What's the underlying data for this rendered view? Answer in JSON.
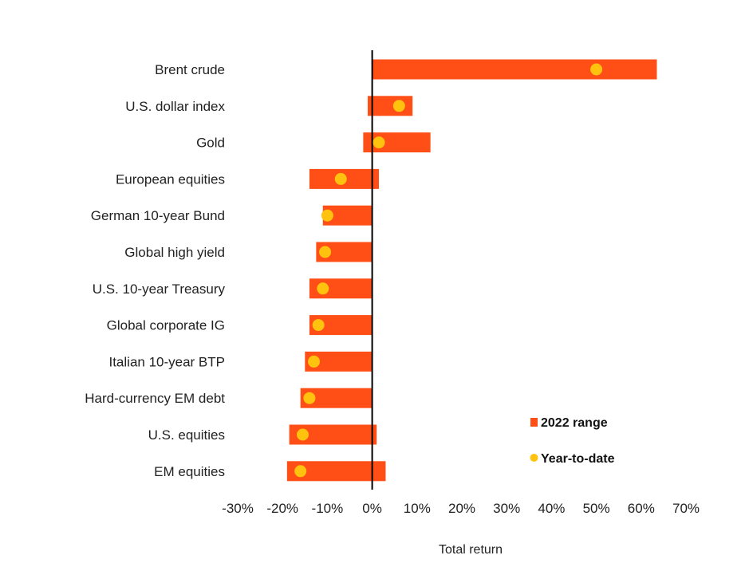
{
  "chart_data": {
    "type": "bar",
    "subtype": "floating-range-with-markers",
    "orientation": "horizontal",
    "categories": [
      "Brent crude",
      "U.S. dollar index",
      "Gold",
      "European equities",
      "German 10-year Bund",
      "Global high yield",
      "U.S. 10-year Treasury",
      "Global corporate IG",
      "Italian 10-year BTP",
      "Hard-currency EM debt",
      "U.S. equities",
      "EM equities"
    ],
    "series": [
      {
        "name": "2022 range",
        "kind": "range",
        "color": "#ff4f17",
        "low": [
          0,
          -1,
          -2,
          -14,
          -11,
          -12.5,
          -14,
          -14,
          -15,
          -16,
          -18.5,
          -19
        ],
        "high": [
          63.5,
          9,
          13,
          1.5,
          0,
          0,
          0,
          0,
          0,
          0,
          1,
          3
        ]
      },
      {
        "name": "Year-to-date",
        "kind": "point",
        "color": "#ffc20e",
        "values": [
          50,
          6,
          1.5,
          -7,
          -10,
          -10.5,
          -11,
          -12,
          -13,
          -14,
          -15.5,
          -16
        ]
      }
    ],
    "xlabel": "Total return",
    "ylabel": "",
    "xlim": [
      -30,
      70
    ],
    "xticks": [
      -30,
      -20,
      -10,
      0,
      10,
      20,
      30,
      40,
      50,
      60,
      70
    ],
    "xtick_labels": [
      "-30%",
      "-20%",
      "-10%",
      "0%",
      "10%",
      "20%",
      "30%",
      "40%",
      "50%",
      "60%",
      "70%"
    ],
    "grid": false,
    "zero_line": true,
    "legend": {
      "position": "bottom-right",
      "items": [
        "2022 range",
        "Year-to-date"
      ]
    },
    "title": ""
  }
}
